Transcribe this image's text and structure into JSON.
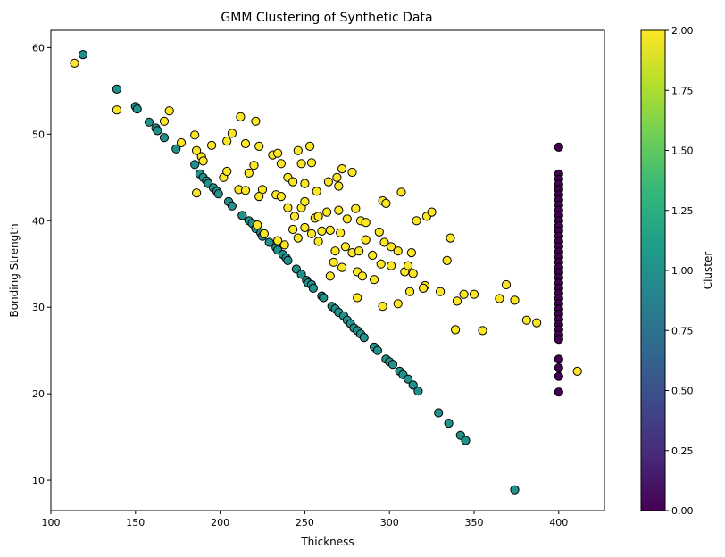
{
  "chart_data": {
    "type": "scatter",
    "title": "GMM Clustering of Synthetic Data",
    "xlabel": "Thickness",
    "ylabel": "Bonding Strength",
    "xlim": [
      100,
      427
    ],
    "ylim": [
      6.5,
      62
    ],
    "xticks": [
      100,
      150,
      200,
      250,
      300,
      350,
      400
    ],
    "yticks": [
      10,
      20,
      30,
      40,
      50,
      60
    ],
    "grid": false,
    "colorbar": {
      "label": "Cluster",
      "min": 0,
      "max": 2,
      "ticks": [
        "0.00",
        "0.25",
        "0.50",
        "0.75",
        "1.00",
        "1.25",
        "1.50",
        "1.75",
        "2.00"
      ],
      "colormap": [
        "#440154",
        "#482878",
        "#3e4989",
        "#31688e",
        "#26828e",
        "#1f9e89",
        "#35b779",
        "#6ece58",
        "#b5de2b",
        "#fde725"
      ]
    },
    "clusters": [
      {
        "cluster": 0,
        "color": "#440154",
        "points": [
          [
            400,
            48.5
          ],
          [
            400,
            45.4
          ],
          [
            400,
            44.8
          ],
          [
            400,
            44.2
          ],
          [
            400,
            43.6
          ],
          [
            400,
            43.0
          ],
          [
            400,
            42.4
          ],
          [
            400,
            41.8
          ],
          [
            400,
            41.2
          ],
          [
            400,
            40.6
          ],
          [
            400,
            40.0
          ],
          [
            400,
            39.4
          ],
          [
            400,
            38.8
          ],
          [
            400,
            38.2
          ],
          [
            400,
            37.6
          ],
          [
            400,
            37.0
          ],
          [
            400,
            36.4
          ],
          [
            400,
            35.8
          ],
          [
            400,
            35.2
          ],
          [
            400,
            34.6
          ],
          [
            400,
            34.0
          ],
          [
            400,
            33.4
          ],
          [
            400,
            32.8
          ],
          [
            400,
            32.2
          ],
          [
            400,
            31.6
          ],
          [
            400,
            31.0
          ],
          [
            400,
            30.4
          ],
          [
            400,
            29.8
          ],
          [
            400,
            29.2
          ],
          [
            400,
            28.6
          ],
          [
            400,
            28.0
          ],
          [
            400,
            27.4
          ],
          [
            400,
            26.8
          ],
          [
            400,
            26.3
          ],
          [
            400,
            24.0
          ],
          [
            400,
            23.0
          ],
          [
            400,
            22.0
          ],
          [
            400,
            20.2
          ]
        ]
      },
      {
        "cluster": 1,
        "color": "#21918c",
        "points": [
          [
            119,
            59.2
          ],
          [
            139,
            55.2
          ],
          [
            150,
            53.2
          ],
          [
            151,
            52.9
          ],
          [
            158,
            51.4
          ],
          [
            162,
            50.7
          ],
          [
            163,
            50.4
          ],
          [
            167,
            49.6
          ],
          [
            174,
            48.3
          ],
          [
            185,
            46.5
          ],
          [
            188,
            45.4
          ],
          [
            190,
            45.0
          ],
          [
            192,
            44.6
          ],
          [
            193,
            44.3
          ],
          [
            196,
            43.8
          ],
          [
            198,
            43.4
          ],
          [
            199,
            43.1
          ],
          [
            205,
            42.2
          ],
          [
            207,
            41.7
          ],
          [
            213,
            40.6
          ],
          [
            217,
            40.0
          ],
          [
            219,
            39.7
          ],
          [
            221,
            39.1
          ],
          [
            224,
            38.6
          ],
          [
            225,
            38.2
          ],
          [
            229,
            37.5
          ],
          [
            233,
            36.9
          ],
          [
            234,
            36.6
          ],
          [
            237,
            36.1
          ],
          [
            239,
            35.7
          ],
          [
            240,
            35.4
          ],
          [
            245,
            34.4
          ],
          [
            248,
            33.8
          ],
          [
            251,
            33.1
          ],
          [
            252,
            32.8
          ],
          [
            254,
            32.6
          ],
          [
            255,
            32.2
          ],
          [
            260,
            31.3
          ],
          [
            261,
            31.1
          ],
          [
            266,
            30.1
          ],
          [
            268,
            29.8
          ],
          [
            270,
            29.4
          ],
          [
            273,
            29.0
          ],
          [
            275,
            28.5
          ],
          [
            277,
            28.1
          ],
          [
            279,
            27.6
          ],
          [
            281,
            27.3
          ],
          [
            283,
            26.9
          ],
          [
            285,
            26.5
          ],
          [
            291,
            25.4
          ],
          [
            293,
            25.0
          ],
          [
            298,
            24.0
          ],
          [
            300,
            23.7
          ],
          [
            302,
            23.4
          ],
          [
            306,
            22.6
          ],
          [
            308,
            22.2
          ],
          [
            311,
            21.7
          ],
          [
            314,
            21.0
          ],
          [
            317,
            20.3
          ],
          [
            329,
            17.8
          ],
          [
            335,
            16.6
          ],
          [
            342,
            15.2
          ],
          [
            345,
            14.6
          ],
          [
            374,
            8.9
          ]
        ]
      },
      {
        "cluster": 2,
        "color": "#fde725",
        "points": [
          [
            114,
            58.2
          ],
          [
            139,
            52.8
          ],
          [
            167,
            51.5
          ],
          [
            170,
            52.7
          ],
          [
            177,
            49.0
          ],
          [
            185,
            49.9
          ],
          [
            186,
            48.1
          ],
          [
            189,
            47.4
          ],
          [
            190,
            46.9
          ],
          [
            195,
            48.7
          ],
          [
            204,
            49.2
          ],
          [
            207,
            50.1
          ],
          [
            211,
            43.6
          ],
          [
            212,
            52.0
          ],
          [
            215,
            48.9
          ],
          [
            217,
            45.5
          ],
          [
            220,
            46.4
          ],
          [
            221,
            51.5
          ],
          [
            223,
            48.6
          ],
          [
            225,
            43.6
          ],
          [
            231,
            47.6
          ],
          [
            234,
            47.8
          ],
          [
            236,
            46.6
          ],
          [
            240,
            45.0
          ],
          [
            243,
            44.5
          ],
          [
            246,
            48.1
          ],
          [
            248,
            46.6
          ],
          [
            250,
            44.3
          ],
          [
            253,
            48.6
          ],
          [
            254,
            46.7
          ],
          [
            257,
            43.4
          ],
          [
            264,
            44.5
          ],
          [
            269,
            45.0
          ],
          [
            270,
            44.0
          ],
          [
            272,
            46.0
          ],
          [
            278,
            45.6
          ],
          [
            186,
            43.2
          ],
          [
            202,
            45.0
          ],
          [
            204,
            45.7
          ],
          [
            215,
            43.5
          ],
          [
            223,
            42.8
          ],
          [
            233,
            43.0
          ],
          [
            236,
            42.8
          ],
          [
            240,
            41.5
          ],
          [
            244,
            40.5
          ],
          [
            248,
            41.5
          ],
          [
            250,
            42.2
          ],
          [
            256,
            40.3
          ],
          [
            258,
            40.5
          ],
          [
            263,
            41.0
          ],
          [
            270,
            41.2
          ],
          [
            275,
            40.2
          ],
          [
            280,
            41.4
          ],
          [
            283,
            40.0
          ],
          [
            286,
            39.8
          ],
          [
            222,
            39.5
          ],
          [
            226,
            38.5
          ],
          [
            234,
            37.7
          ],
          [
            238,
            37.2
          ],
          [
            243,
            39.0
          ],
          [
            246,
            38.0
          ],
          [
            250,
            39.2
          ],
          [
            254,
            38.5
          ],
          [
            258,
            37.6
          ],
          [
            260,
            38.8
          ],
          [
            265,
            38.9
          ],
          [
            268,
            36.5
          ],
          [
            271,
            38.6
          ],
          [
            274,
            37.0
          ],
          [
            278,
            36.3
          ],
          [
            282,
            36.5
          ],
          [
            286,
            37.8
          ],
          [
            290,
            36.0
          ],
          [
            294,
            38.7
          ],
          [
            297,
            37.5
          ],
          [
            301,
            37.0
          ],
          [
            305,
            36.5
          ],
          [
            265,
            33.6
          ],
          [
            267,
            35.2
          ],
          [
            272,
            34.6
          ],
          [
            281,
            34.1
          ],
          [
            284,
            33.6
          ],
          [
            291,
            33.2
          ],
          [
            295,
            35.0
          ],
          [
            301,
            34.8
          ],
          [
            309,
            34.1
          ],
          [
            314,
            33.9
          ],
          [
            321,
            32.5
          ],
          [
            330,
            31.8
          ],
          [
            296,
            30.1
          ],
          [
            305,
            30.4
          ],
          [
            312,
            31.8
          ],
          [
            320,
            32.2
          ],
          [
            334,
            35.4
          ],
          [
            336,
            38.0
          ],
          [
            340,
            30.7
          ],
          [
            344,
            31.5
          ],
          [
            350,
            31.5
          ],
          [
            307,
            43.3
          ],
          [
            296,
            42.3
          ],
          [
            298,
            42.0
          ],
          [
            316,
            40.0
          ],
          [
            322,
            40.5
          ],
          [
            325,
            41.0
          ],
          [
            311,
            34.8
          ],
          [
            313,
            36.3
          ],
          [
            281,
            31.1
          ],
          [
            339,
            27.4
          ],
          [
            355,
            27.3
          ],
          [
            365,
            31.0
          ],
          [
            369,
            32.6
          ],
          [
            374,
            30.8
          ],
          [
            381,
            28.5
          ],
          [
            387,
            28.2
          ],
          [
            411,
            22.6
          ]
        ]
      }
    ]
  }
}
